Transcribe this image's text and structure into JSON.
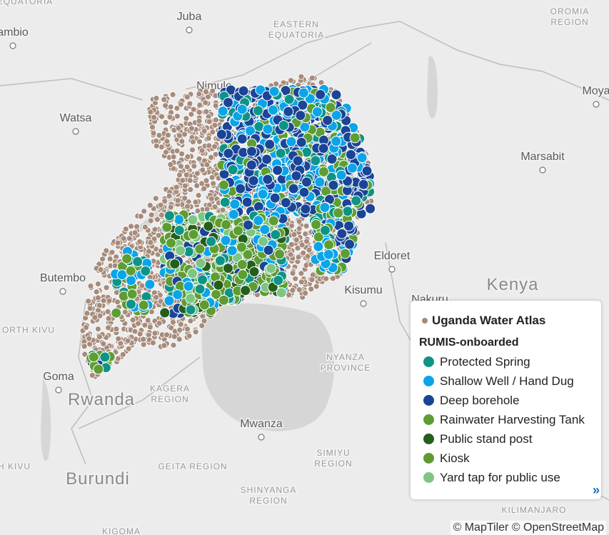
{
  "map": {
    "labels": [
      {
        "lines": [
          "EQUATORIA"
        ]
      },
      {
        "lines": [
          "ambio"
        ]
      },
      {
        "lines": [
          "Juba"
        ]
      },
      {
        "lines": [
          "EASTERN",
          "EQUATORIA"
        ]
      },
      {
        "lines": [
          "OROMIA",
          "REGION"
        ]
      },
      {
        "lines": [
          "Nimule"
        ]
      },
      {
        "lines": [
          "Watsa"
        ]
      },
      {
        "lines": [
          "Moya"
        ]
      },
      {
        "lines": [
          "Marsabit"
        ]
      },
      {
        "lines": [
          "Eldoret"
        ]
      },
      {
        "lines": [
          "Butembo"
        ]
      },
      {
        "lines": [
          "Kisumu"
        ]
      },
      {
        "lines": [
          "Nakuru"
        ]
      },
      {
        "lines": [
          "Kenya"
        ]
      },
      {
        "lines": [
          "ORTH KIVU"
        ]
      },
      {
        "lines": [
          "Goma"
        ]
      },
      {
        "lines": [
          "Rwanda"
        ]
      },
      {
        "lines": [
          "KAGERA",
          "REGION"
        ]
      },
      {
        "lines": [
          "NYANZA",
          "PROVINCE"
        ]
      },
      {
        "lines": [
          "Mwanza"
        ]
      },
      {
        "lines": [
          "SIMIYU",
          "REGION"
        ]
      },
      {
        "lines": [
          "GEITA REGION"
        ]
      },
      {
        "lines": [
          "H KIVU"
        ]
      },
      {
        "lines": [
          "Burundi"
        ]
      },
      {
        "lines": [
          "SHINYANGA",
          "REGION"
        ]
      },
      {
        "lines": [
          "KILIMANJARO"
        ]
      },
      {
        "lines": [
          "KIGOMA"
        ]
      }
    ],
    "legend": {
      "title": "Uganda Water Atlas",
      "title_color": "#a68b7b",
      "subtitle": "RUMIS-onboarded",
      "items": [
        {
          "name": "Protected Spring",
          "color": "#0e9486"
        },
        {
          "name": "Shallow Well / Hand Dug",
          "color": "#0ba4e8"
        },
        {
          "name": "Deep borehole",
          "color": "#1a4597"
        },
        {
          "name": "Rainwater Harvesting Tank",
          "color": "#5d9e33"
        },
        {
          "name": "Public stand post",
          "color": "#245e1b"
        },
        {
          "name": "Kiosk",
          "color": "#5f9a32"
        },
        {
          "name": "Yard tap for public use",
          "color": "#7dc583"
        }
      ],
      "expand": "»"
    },
    "attribution": "© MapTiler © OpenStreetMap"
  }
}
